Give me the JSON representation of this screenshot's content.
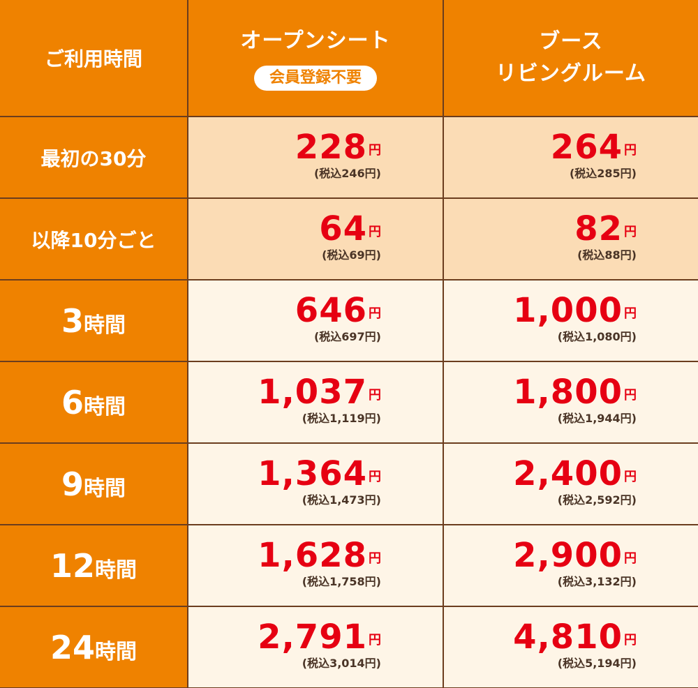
{
  "header": {
    "usage_time": "ご利用時間",
    "open_seat": "オープンシート",
    "no_membership": "会員登録不要",
    "booth_line1": "ブース",
    "booth_line2": "リビングルーム"
  },
  "yen": "円",
  "rows": [
    {
      "label": "最初の30分",
      "open": {
        "price": "228",
        "tax": "(税込246円)"
      },
      "booth": {
        "price": "264",
        "tax": "(税込285円)"
      }
    },
    {
      "label": "以降10分ごと",
      "open": {
        "price": "64",
        "tax": "(税込69円)"
      },
      "booth": {
        "price": "82",
        "tax": "(税込88円)"
      }
    },
    {
      "label_num": "3",
      "label_unit": "時間",
      "open": {
        "price": "646",
        "tax": "(税込697円)"
      },
      "booth": {
        "price": "1,000",
        "tax": "(税込1,080円)"
      }
    },
    {
      "label_num": "6",
      "label_unit": "時間",
      "open": {
        "price": "1,037",
        "tax": "(税込1,119円)"
      },
      "booth": {
        "price": "1,800",
        "tax": "(税込1,944円)"
      }
    },
    {
      "label_num": "9",
      "label_unit": "時間",
      "open": {
        "price": "1,364",
        "tax": "(税込1,473円)"
      },
      "booth": {
        "price": "2,400",
        "tax": "(税込2,592円)"
      }
    },
    {
      "label_num": "12",
      "label_unit": "時間",
      "open": {
        "price": "1,628",
        "tax": "(税込1,758円)"
      },
      "booth": {
        "price": "2,900",
        "tax": "(税込3,132円)"
      }
    },
    {
      "label_num": "24",
      "label_unit": "時間",
      "open": {
        "price": "2,791",
        "tax": "(税込3,014円)"
      },
      "booth": {
        "price": "4,810",
        "tax": "(税込5,194円)"
      }
    }
  ],
  "colors": {
    "header_bg": "#ef8200",
    "accent_price": "#e60012",
    "peach_row": "#fbdcb5",
    "cream_row": "#fef5e7",
    "border": "#6b3d1e"
  }
}
